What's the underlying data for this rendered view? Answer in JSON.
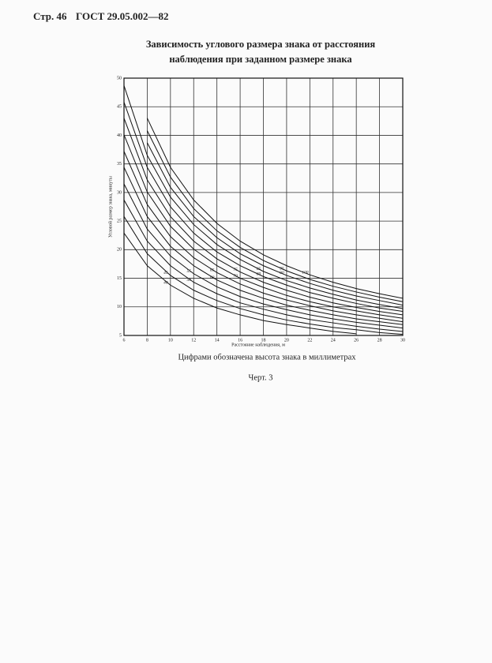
{
  "header": {
    "page": "Стр. 46",
    "standard": "ГОСТ 29.05.002—82"
  },
  "chart_data": {
    "type": "line",
    "title": [
      "Зависимость углового размера знака от расстояния",
      "наблюдения при заданном размере знака"
    ],
    "x_label": "Расстояние наблюдения, м",
    "y_label": "Угловой размер знака, минуты",
    "x": [
      6,
      8,
      10,
      12,
      14,
      16,
      18,
      20,
      22,
      24,
      26,
      28,
      30
    ],
    "xlim": [
      6,
      30
    ],
    "xticks": [
      6,
      8,
      10,
      12,
      14,
      16,
      18,
      20,
      22,
      24,
      26,
      28,
      30
    ],
    "ylim": [
      5,
      50
    ],
    "yticks": [
      5,
      10,
      15,
      20,
      25,
      30,
      35,
      40,
      45,
      50
    ],
    "grid": true,
    "series": [
      {
        "name": "40",
        "color": "#111111",
        "values": [
          22.9,
          17.2,
          13.8,
          11.5,
          9.8,
          8.6,
          7.6,
          6.9,
          6.3,
          5.7,
          5.3,
          null,
          null
        ]
      },
      {
        "name": "45",
        "color": "#111111",
        "values": [
          25.8,
          19.3,
          15.5,
          12.9,
          11.1,
          9.7,
          8.6,
          7.7,
          7.0,
          6.4,
          6.0,
          5.5,
          5.2
        ]
      },
      {
        "name": "50",
        "color": "#111111",
        "values": [
          28.7,
          21.5,
          17.2,
          14.3,
          12.3,
          10.7,
          9.6,
          8.6,
          7.8,
          7.2,
          6.6,
          6.1,
          5.7
        ]
      },
      {
        "name": "55",
        "color": "#111111",
        "values": [
          31.5,
          23.6,
          18.9,
          15.8,
          13.5,
          11.8,
          10.5,
          9.5,
          8.6,
          7.9,
          7.3,
          6.8,
          6.3
        ]
      },
      {
        "name": "60",
        "color": "#111111",
        "values": [
          34.4,
          25.8,
          20.6,
          17.2,
          14.7,
          12.9,
          11.5,
          10.3,
          9.4,
          8.6,
          7.9,
          7.4,
          6.9
        ]
      },
      {
        "name": "65",
        "color": "#111111",
        "values": [
          37.2,
          27.9,
          22.3,
          18.6,
          16.0,
          14.0,
          12.4,
          11.2,
          10.2,
          9.3,
          8.6,
          8.0,
          7.4
        ]
      },
      {
        "name": "70",
        "color": "#111111",
        "values": [
          40.1,
          30.1,
          24.1,
          20.1,
          17.2,
          15.0,
          13.4,
          12.0,
          10.9,
          10.0,
          9.3,
          8.6,
          8.0
        ]
      },
      {
        "name": "75",
        "color": "#111111",
        "values": [
          43.0,
          32.2,
          25.8,
          21.5,
          18.4,
          16.1,
          14.3,
          12.9,
          11.7,
          10.7,
          9.9,
          9.2,
          8.6
        ]
      },
      {
        "name": "80",
        "color": "#111111",
        "values": [
          45.8,
          34.4,
          27.5,
          22.9,
          19.6,
          17.2,
          15.3,
          13.8,
          12.5,
          11.5,
          10.6,
          9.8,
          9.2
        ]
      },
      {
        "name": "85",
        "color": "#111111",
        "values": [
          48.7,
          36.5,
          29.2,
          24.4,
          20.9,
          18.3,
          16.2,
          14.6,
          13.3,
          12.2,
          11.2,
          10.4,
          9.7
        ]
      },
      {
        "name": "90",
        "color": "#111111",
        "values": [
          null,
          38.7,
          30.9,
          25.8,
          22.1,
          19.3,
          17.2,
          15.5,
          14.1,
          12.9,
          11.9,
          11.1,
          10.3
        ]
      },
      {
        "name": "95",
        "color": "#111111",
        "values": [
          null,
          40.8,
          32.7,
          27.2,
          23.3,
          20.4,
          18.1,
          16.3,
          14.8,
          13.6,
          12.6,
          11.7,
          10.9
        ]
      },
      {
        "name": "100",
        "color": "#111111",
        "values": [
          null,
          43.0,
          34.4,
          28.7,
          24.6,
          21.5,
          19.1,
          17.2,
          15.6,
          14.3,
          13.2,
          12.3,
          11.5
        ]
      }
    ]
  },
  "caption": "Цифрами обозначена высота знака в миллиметрах",
  "figure_label": "Черт. 3"
}
